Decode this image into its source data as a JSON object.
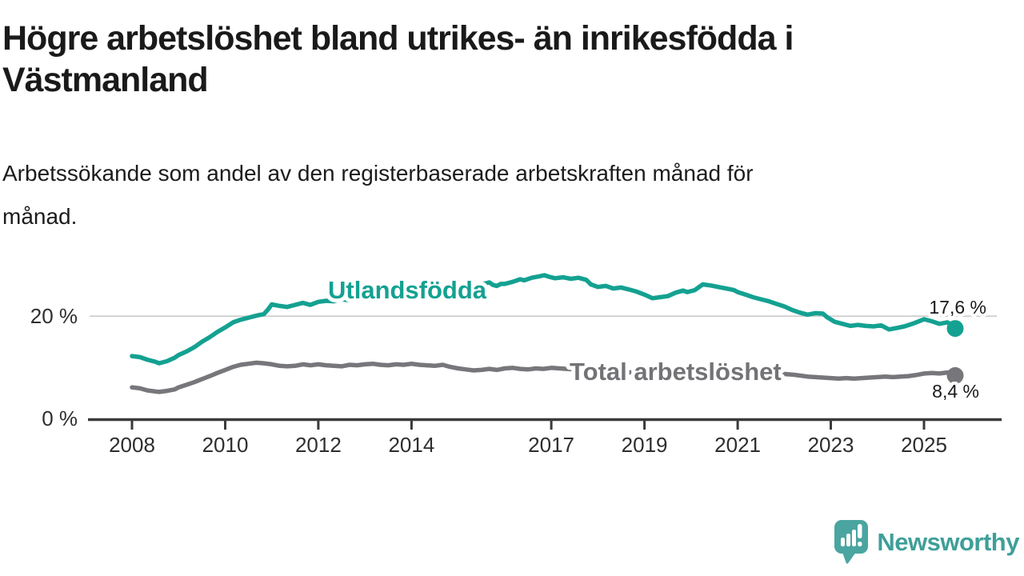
{
  "header": {
    "title_lines": [
      "Högre arbetslöshet bland utrikes- än inrikesfödda i",
      "Västmanland"
    ],
    "subtitle_lines": [
      "Arbetssökande som andel av den registerbaserade arbetskraften månad för",
      "månad."
    ]
  },
  "brand": {
    "name": "Newsworthy",
    "icon": "newsworthy-speech-bubble-bar-chart-icon",
    "wordmark_color": "#3e9f99",
    "icon_color": "#4aa5a0"
  },
  "chart_data": {
    "type": "line",
    "title": "Högre arbetslöshet bland utrikes- än inrikesfödda i Västmanland",
    "subtitle": "Arbetssökande som andel av den registerbaserade arbetskraften månad för månad.",
    "unit": "%",
    "grid": "single horizontal gridline at 20 %",
    "legend": "inline labels on series",
    "x_axis": {
      "range": [
        2007.1,
        2026.7
      ],
      "ticks": [
        {
          "year": 2008,
          "label": "2008"
        },
        {
          "year": 2010,
          "label": "2010"
        },
        {
          "year": 2012,
          "label": "2012"
        },
        {
          "year": 2014,
          "label": "2014"
        },
        {
          "year": 2017,
          "label": "2017"
        },
        {
          "year": 2019,
          "label": "2019"
        },
        {
          "year": 2021,
          "label": "2021"
        },
        {
          "year": 2023,
          "label": "2023"
        },
        {
          "year": 2025,
          "label": "2025"
        }
      ]
    },
    "y_axis": {
      "range": [
        0,
        34
      ],
      "ticks": [
        {
          "value": 20,
          "label": "20 %"
        },
        {
          "value": 0,
          "label": "0 %"
        }
      ]
    },
    "series": [
      {
        "name": "Utlandsfödda",
        "color": "#14a191",
        "label_color": "#14a191",
        "end_label": "17,6 %",
        "end_value": 17.6,
        "points": [
          [
            2008.0,
            12.2
          ],
          [
            2008.17,
            12.0
          ],
          [
            2008.33,
            11.5
          ],
          [
            2008.5,
            11.1
          ],
          [
            2008.58,
            10.8
          ],
          [
            2008.75,
            11.2
          ],
          [
            2008.92,
            11.9
          ],
          [
            2009.0,
            12.4
          ],
          [
            2009.17,
            13.1
          ],
          [
            2009.33,
            13.9
          ],
          [
            2009.5,
            15.0
          ],
          [
            2009.67,
            15.9
          ],
          [
            2009.83,
            16.9
          ],
          [
            2010.0,
            17.8
          ],
          [
            2010.17,
            18.8
          ],
          [
            2010.33,
            19.3
          ],
          [
            2010.5,
            19.7
          ],
          [
            2010.67,
            20.1
          ],
          [
            2010.83,
            20.4
          ],
          [
            2010.92,
            21.3
          ],
          [
            2011.0,
            22.3
          ],
          [
            2011.17,
            22.0
          ],
          [
            2011.33,
            21.8
          ],
          [
            2011.5,
            22.2
          ],
          [
            2011.67,
            22.6
          ],
          [
            2011.83,
            22.2
          ],
          [
            2012.0,
            22.8
          ],
          [
            2012.17,
            23.0
          ],
          [
            2012.33,
            22.9
          ],
          [
            2012.5,
            23.3
          ],
          [
            2012.67,
            23.1
          ],
          [
            2012.83,
            23.3
          ],
          [
            2013.0,
            23.8
          ],
          [
            2013.17,
            24.1
          ],
          [
            2013.33,
            23.9
          ],
          [
            2013.5,
            24.2
          ],
          [
            2013.67,
            24.4
          ],
          [
            2013.83,
            24.3
          ],
          [
            2014.0,
            24.7
          ],
          [
            2014.17,
            24.9
          ],
          [
            2014.33,
            25.1
          ],
          [
            2014.5,
            25.0
          ],
          [
            2014.67,
            25.3
          ],
          [
            2014.83,
            25.2
          ],
          [
            2015.0,
            25.5
          ],
          [
            2015.17,
            25.8
          ],
          [
            2015.33,
            26.1
          ],
          [
            2015.5,
            26.2
          ],
          [
            2015.67,
            26.6
          ],
          [
            2015.75,
            26.1
          ],
          [
            2015.83,
            25.9
          ],
          [
            2015.92,
            26.3
          ],
          [
            2016.0,
            26.3
          ],
          [
            2016.17,
            26.7
          ],
          [
            2016.33,
            27.2
          ],
          [
            2016.42,
            27.0
          ],
          [
            2016.58,
            27.5
          ],
          [
            2016.75,
            27.8
          ],
          [
            2016.85,
            28.0
          ],
          [
            2016.95,
            27.7
          ],
          [
            2017.08,
            27.4
          ],
          [
            2017.25,
            27.6
          ],
          [
            2017.42,
            27.3
          ],
          [
            2017.58,
            27.5
          ],
          [
            2017.75,
            27.1
          ],
          [
            2017.85,
            26.2
          ],
          [
            2018.0,
            25.7
          ],
          [
            2018.17,
            25.9
          ],
          [
            2018.33,
            25.4
          ],
          [
            2018.5,
            25.6
          ],
          [
            2018.67,
            25.2
          ],
          [
            2018.83,
            24.8
          ],
          [
            2019.0,
            24.2
          ],
          [
            2019.17,
            23.5
          ],
          [
            2019.33,
            23.7
          ],
          [
            2019.5,
            23.9
          ],
          [
            2019.67,
            24.6
          ],
          [
            2019.83,
            25.0
          ],
          [
            2019.92,
            24.7
          ],
          [
            2020.08,
            25.1
          ],
          [
            2020.25,
            26.2
          ],
          [
            2020.42,
            26.0
          ],
          [
            2020.58,
            25.7
          ],
          [
            2020.75,
            25.4
          ],
          [
            2020.92,
            25.1
          ],
          [
            2021.0,
            24.7
          ],
          [
            2021.17,
            24.2
          ],
          [
            2021.33,
            23.7
          ],
          [
            2021.5,
            23.3
          ],
          [
            2021.67,
            22.9
          ],
          [
            2021.83,
            22.4
          ],
          [
            2022.0,
            21.9
          ],
          [
            2022.17,
            21.2
          ],
          [
            2022.33,
            20.7
          ],
          [
            2022.5,
            20.3
          ],
          [
            2022.67,
            20.6
          ],
          [
            2022.83,
            20.5
          ],
          [
            2022.92,
            19.8
          ],
          [
            2023.08,
            18.9
          ],
          [
            2023.25,
            18.5
          ],
          [
            2023.42,
            18.1
          ],
          [
            2023.58,
            18.3
          ],
          [
            2023.75,
            18.1
          ],
          [
            2023.92,
            18.0
          ],
          [
            2024.08,
            18.2
          ],
          [
            2024.25,
            17.4
          ],
          [
            2024.42,
            17.7
          ],
          [
            2024.58,
            18.0
          ],
          [
            2024.75,
            18.5
          ],
          [
            2024.92,
            19.1
          ],
          [
            2025.0,
            19.4
          ],
          [
            2025.17,
            19.0
          ],
          [
            2025.33,
            18.5
          ],
          [
            2025.5,
            18.8
          ],
          [
            2025.58,
            18.4
          ],
          [
            2025.67,
            17.6
          ]
        ]
      },
      {
        "name": "Total arbetslöshet",
        "color": "#77777b",
        "label_color": "#737377",
        "end_label": "8,4 %",
        "end_value": 8.4,
        "points": [
          [
            2008.0,
            6.1
          ],
          [
            2008.17,
            5.9
          ],
          [
            2008.33,
            5.5
          ],
          [
            2008.5,
            5.3
          ],
          [
            2008.58,
            5.2
          ],
          [
            2008.75,
            5.4
          ],
          [
            2008.92,
            5.7
          ],
          [
            2009.0,
            6.1
          ],
          [
            2009.17,
            6.6
          ],
          [
            2009.33,
            7.1
          ],
          [
            2009.5,
            7.7
          ],
          [
            2009.67,
            8.3
          ],
          [
            2009.83,
            8.9
          ],
          [
            2010.0,
            9.5
          ],
          [
            2010.17,
            10.1
          ],
          [
            2010.33,
            10.5
          ],
          [
            2010.5,
            10.7
          ],
          [
            2010.67,
            10.9
          ],
          [
            2010.83,
            10.8
          ],
          [
            2011.0,
            10.6
          ],
          [
            2011.17,
            10.3
          ],
          [
            2011.33,
            10.2
          ],
          [
            2011.5,
            10.3
          ],
          [
            2011.67,
            10.6
          ],
          [
            2011.83,
            10.4
          ],
          [
            2012.0,
            10.6
          ],
          [
            2012.17,
            10.4
          ],
          [
            2012.33,
            10.3
          ],
          [
            2012.5,
            10.2
          ],
          [
            2012.67,
            10.5
          ],
          [
            2012.83,
            10.4
          ],
          [
            2013.0,
            10.6
          ],
          [
            2013.17,
            10.7
          ],
          [
            2013.33,
            10.5
          ],
          [
            2013.5,
            10.4
          ],
          [
            2013.67,
            10.6
          ],
          [
            2013.83,
            10.5
          ],
          [
            2014.0,
            10.7
          ],
          [
            2014.17,
            10.5
          ],
          [
            2014.33,
            10.4
          ],
          [
            2014.5,
            10.3
          ],
          [
            2014.67,
            10.5
          ],
          [
            2014.83,
            10.1
          ],
          [
            2015.0,
            9.8
          ],
          [
            2015.17,
            9.6
          ],
          [
            2015.33,
            9.4
          ],
          [
            2015.5,
            9.5
          ],
          [
            2015.67,
            9.7
          ],
          [
            2015.83,
            9.5
          ],
          [
            2016.0,
            9.8
          ],
          [
            2016.17,
            9.9
          ],
          [
            2016.33,
            9.7
          ],
          [
            2016.5,
            9.6
          ],
          [
            2016.67,
            9.8
          ],
          [
            2016.83,
            9.7
          ],
          [
            2017.0,
            9.9
          ],
          [
            2017.17,
            9.8
          ],
          [
            2017.33,
            9.7
          ],
          [
            2017.5,
            9.6
          ],
          [
            2017.67,
            9.5
          ],
          [
            2017.83,
            9.4
          ],
          [
            2018.0,
            9.3
          ],
          [
            2018.25,
            9.2
          ],
          [
            2018.5,
            9.1
          ],
          [
            2018.75,
            9.0
          ],
          [
            2019.0,
            8.9
          ],
          [
            2019.25,
            8.8
          ],
          [
            2019.5,
            8.8
          ],
          [
            2019.75,
            8.9
          ],
          [
            2020.0,
            9.2
          ],
          [
            2020.25,
            9.8
          ],
          [
            2020.5,
            9.9
          ],
          [
            2020.75,
            9.7
          ],
          [
            2021.0,
            9.4
          ],
          [
            2021.25,
            9.2
          ],
          [
            2021.5,
            9.0
          ],
          [
            2021.75,
            8.8
          ],
          [
            2022.0,
            8.7
          ],
          [
            2022.17,
            8.6
          ],
          [
            2022.33,
            8.4
          ],
          [
            2022.5,
            8.2
          ],
          [
            2022.67,
            8.1
          ],
          [
            2022.83,
            8.0
          ],
          [
            2023.0,
            7.9
          ],
          [
            2023.17,
            7.8
          ],
          [
            2023.33,
            7.9
          ],
          [
            2023.5,
            7.8
          ],
          [
            2023.67,
            7.9
          ],
          [
            2023.83,
            8.0
          ],
          [
            2024.0,
            8.1
          ],
          [
            2024.17,
            8.2
          ],
          [
            2024.33,
            8.1
          ],
          [
            2024.5,
            8.2
          ],
          [
            2024.67,
            8.3
          ],
          [
            2024.83,
            8.5
          ],
          [
            2025.0,
            8.8
          ],
          [
            2025.17,
            8.9
          ],
          [
            2025.33,
            8.8
          ],
          [
            2025.5,
            9.0
          ],
          [
            2025.58,
            8.9
          ],
          [
            2025.67,
            8.4
          ]
        ]
      }
    ]
  }
}
